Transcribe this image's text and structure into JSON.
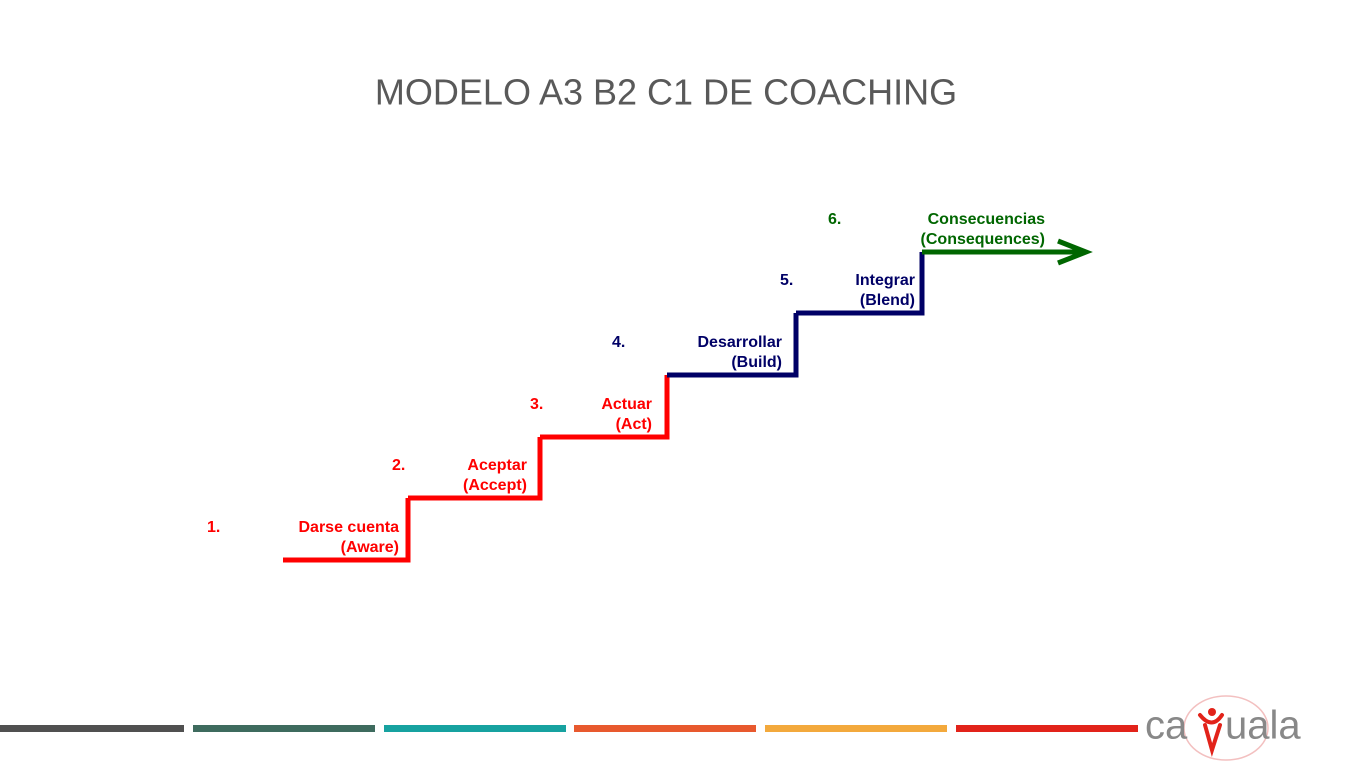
{
  "header": {
    "title": "MODELO A3 B2 C1 DE COACHING"
  },
  "steps": [
    {
      "number": "1.",
      "name": "Darse cuenta",
      "english": "(Aware)",
      "color": "#ff0000"
    },
    {
      "number": "2.",
      "name": "Aceptar",
      "english": "(Accept)",
      "color": "#ff0000"
    },
    {
      "number": "3.",
      "name": "Actuar",
      "english": "(Act)",
      "color": "#ff0000"
    },
    {
      "number": "4.",
      "name": "Desarrollar",
      "english": "(Build)",
      "color": "#000066"
    },
    {
      "number": "5.",
      "name": "Integrar",
      "english": "(Blend)",
      "color": "#000066"
    },
    {
      "number": "6.",
      "name": "Consecuencias",
      "english": "(Consequences)",
      "color": "#006600"
    }
  ],
  "logo": {
    "left": "ca",
    "right": "uala"
  }
}
